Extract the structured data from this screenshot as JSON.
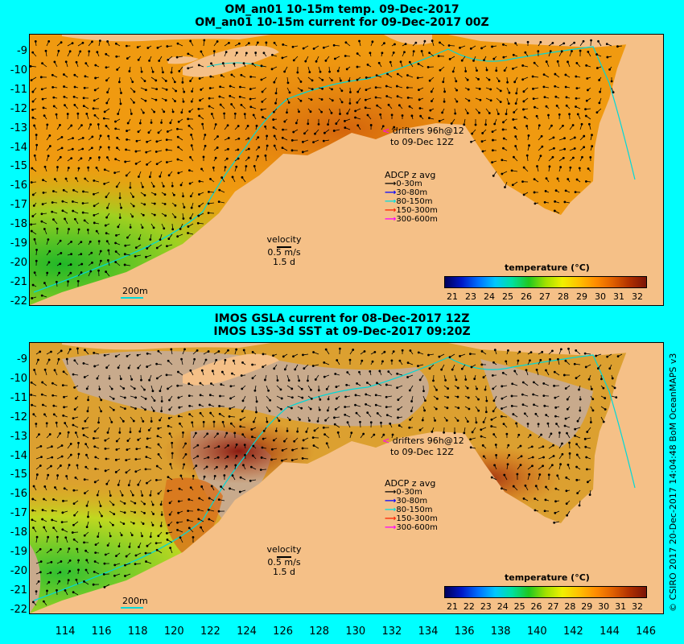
{
  "top": {
    "title_line1": "OM_an01 10-15m temp. 09-Dec-2017",
    "title_line2": "OM_an01 10-15m current for 09-Dec-2017 00Z"
  },
  "bottom": {
    "title_line1": "IMOS GSLA current for 08-Dec-2017 12Z",
    "title_line2": "IMOS L3S-3d SST at 09-Dec-2017 09:20Z"
  },
  "annotations": {
    "drifters_line1": "drifters 96h@12",
    "drifters_line2": "to 09-Dec 12Z",
    "adcp_title": "ADCP z avg",
    "adcp_levels": [
      "0-30m",
      "30-80m",
      "80-150m",
      "150-300m",
      "300-600m"
    ],
    "velocity_label": "velocity",
    "velocity_scale": "0.5 m/s",
    "velocity_days": "1.5 d",
    "isobath_label": "200m"
  },
  "colorbar": {
    "title": "temperature (°C)",
    "top_ticks": [
      "21",
      "23",
      "24",
      "25",
      "26",
      "27",
      "28",
      "29",
      "30",
      "31",
      "32"
    ],
    "bottom_ticks": [
      "21",
      "22",
      "23",
      "24",
      "25",
      "26",
      "27",
      "28",
      "29",
      "30",
      "31",
      "32"
    ],
    "colors": [
      "#00005a",
      "#0018c8",
      "#0070ff",
      "#00c8ff",
      "#00e0a0",
      "#20c820",
      "#a0e000",
      "#f0f000",
      "#ffc000",
      "#ff8c00",
      "#e06000",
      "#b03000",
      "#7a1408"
    ]
  },
  "axes": {
    "y_ticks": [
      "-9",
      "-10",
      "-11",
      "-12",
      "-13",
      "-14",
      "-15",
      "-16",
      "-17",
      "-18",
      "-19",
      "-20",
      "-21",
      "-22"
    ],
    "x_ticks": [
      "114",
      "116",
      "118",
      "120",
      "122",
      "124",
      "126",
      "128",
      "130",
      "132",
      "134",
      "136",
      "138",
      "140",
      "142",
      "144",
      "146"
    ]
  },
  "credit": "© CSIRO 2017  20-Dec-2017 14:04:48 BoM OceanMAPS v3",
  "palette": {
    "background": "#00ffff",
    "land": "#f5c087",
    "no_data": "#c8aa8c",
    "ocean_orange": "#f09a10",
    "ocean_warm": "#d4640c",
    "ocean_yellow": "#e8c818",
    "ocean_green": "#40c040",
    "isobath": "#00d8d8",
    "drifter": "#ff00ff"
  }
}
